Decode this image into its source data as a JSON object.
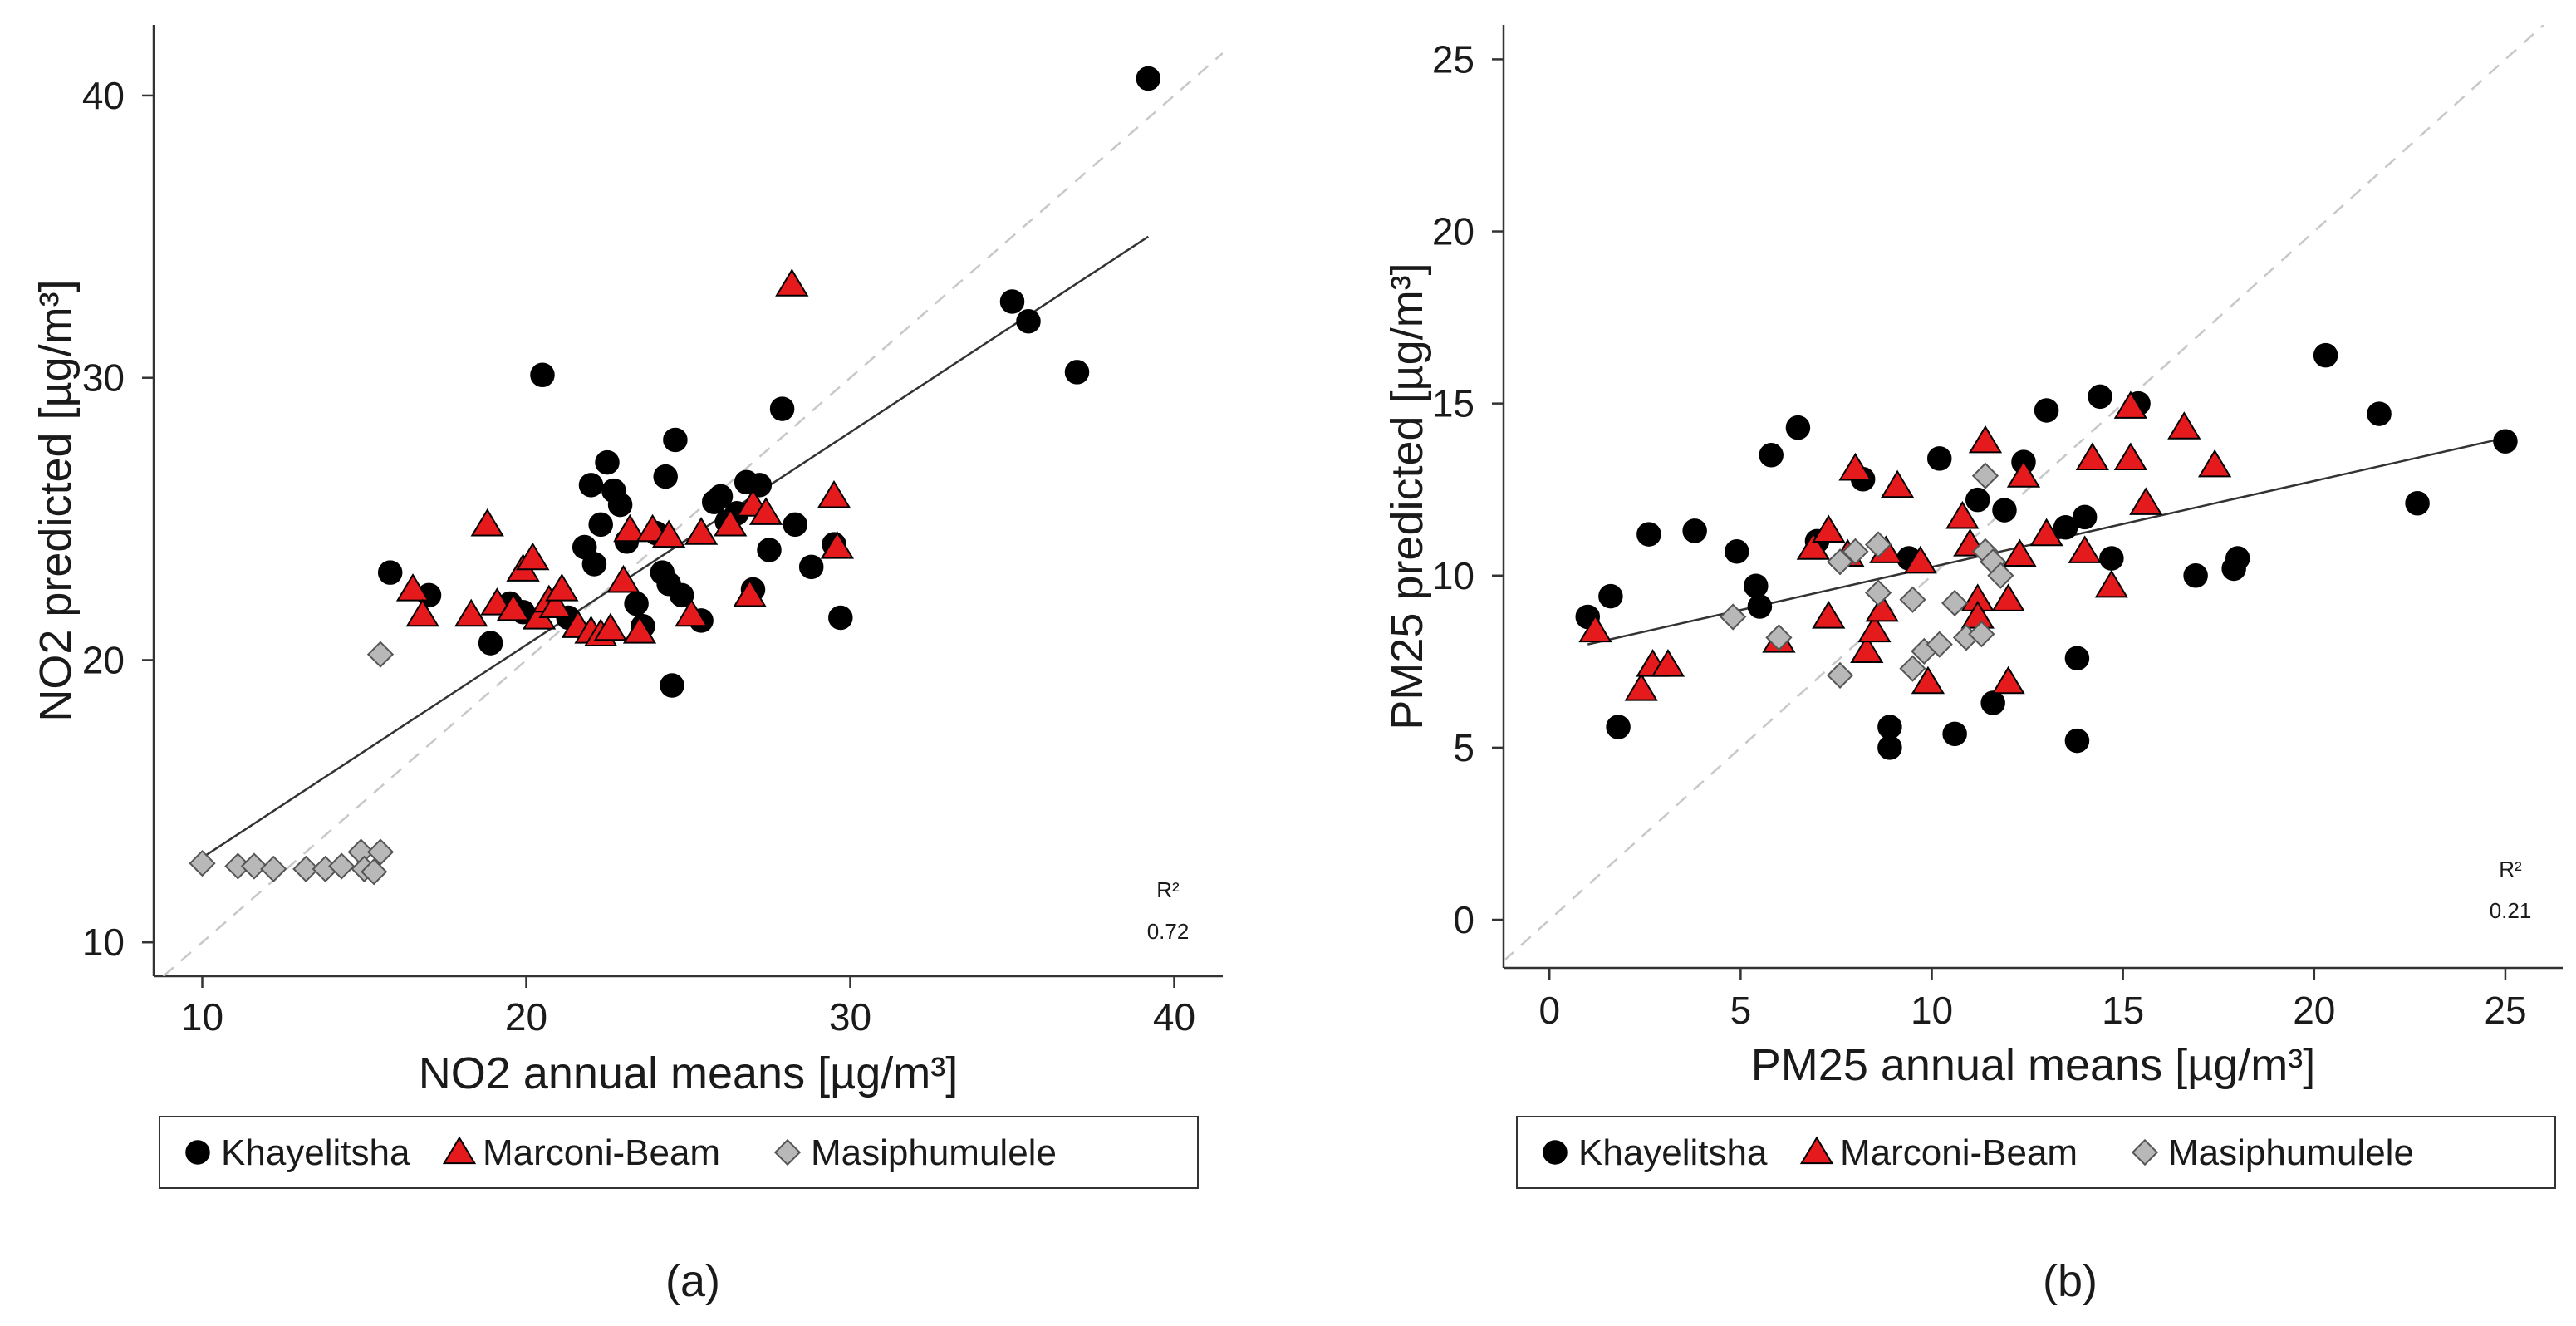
{
  "chart_data": [
    {
      "type": "scatter",
      "panel_caption": "(a)",
      "xlabel": "NO2 annual means [µg/m³]",
      "ylabel": "NO2 predicted [µg/m³]",
      "xlim": [
        8.5,
        41.5
      ],
      "ylim": [
        8.8,
        42.5
      ],
      "xticks": [
        10,
        20,
        30,
        40
      ],
      "yticks": [
        10,
        20,
        30,
        40
      ],
      "grid": false,
      "legend_position": "bottom",
      "annotation": {
        "label": "R²",
        "value": "0.72"
      },
      "identity_line": true,
      "fit_line": {
        "x": [
          10,
          39.2
        ],
        "y": [
          13.0,
          35.0
        ]
      },
      "series": [
        {
          "name": "Khayelitsha",
          "marker": "circle",
          "color": "#000000",
          "points": [
            [
              15.8,
              23.1
            ],
            [
              17.0,
              22.3
            ],
            [
              18.9,
              20.6
            ],
            [
              19.5,
              22.0
            ],
            [
              19.9,
              21.7
            ],
            [
              20.5,
              30.1
            ],
            [
              21.3,
              21.5
            ],
            [
              21.8,
              24.0
            ],
            [
              22.0,
              26.2
            ],
            [
              22.1,
              23.4
            ],
            [
              22.3,
              24.8
            ],
            [
              22.5,
              27.0
            ],
            [
              22.7,
              26.0
            ],
            [
              22.9,
              25.5
            ],
            [
              23.1,
              24.2
            ],
            [
              23.4,
              22.0
            ],
            [
              23.6,
              21.2
            ],
            [
              24.0,
              24.5
            ],
            [
              24.2,
              23.1
            ],
            [
              24.3,
              26.5
            ],
            [
              24.4,
              22.7
            ],
            [
              24.6,
              27.8
            ],
            [
              24.5,
              19.1
            ],
            [
              24.8,
              22.3
            ],
            [
              25.4,
              21.4
            ],
            [
              25.8,
              25.6
            ],
            [
              26.0,
              25.8
            ],
            [
              26.2,
              24.9
            ],
            [
              26.5,
              25.2
            ],
            [
              26.8,
              26.3
            ],
            [
              27.0,
              22.5
            ],
            [
              27.2,
              26.2
            ],
            [
              27.5,
              23.9
            ],
            [
              27.9,
              28.9
            ],
            [
              28.3,
              24.8
            ],
            [
              28.8,
              23.3
            ],
            [
              29.5,
              24.1
            ],
            [
              29.7,
              21.5
            ],
            [
              35.0,
              32.7
            ],
            [
              35.5,
              32.0
            ],
            [
              37.0,
              30.2
            ],
            [
              39.2,
              40.6
            ]
          ]
        },
        {
          "name": "Marconi-Beam",
          "marker": "triangle",
          "color": "#e41a1c",
          "points": [
            [
              16.5,
              22.5
            ],
            [
              16.8,
              21.6
            ],
            [
              18.3,
              21.6
            ],
            [
              18.8,
              24.8
            ],
            [
              19.1,
              22.0
            ],
            [
              19.6,
              21.8
            ],
            [
              19.9,
              23.2
            ],
            [
              20.2,
              23.6
            ],
            [
              20.4,
              21.5
            ],
            [
              20.7,
              22.1
            ],
            [
              20.9,
              21.9
            ],
            [
              21.1,
              22.5
            ],
            [
              21.6,
              21.2
            ],
            [
              22.0,
              21.0
            ],
            [
              22.3,
              20.9
            ],
            [
              22.6,
              21.1
            ],
            [
              23.0,
              22.8
            ],
            [
              23.2,
              24.6
            ],
            [
              23.5,
              21.0
            ],
            [
              23.9,
              24.6
            ],
            [
              24.4,
              24.4
            ],
            [
              25.1,
              21.6
            ],
            [
              25.4,
              24.5
            ],
            [
              26.3,
              24.8
            ],
            [
              26.9,
              22.3
            ],
            [
              27.0,
              25.5
            ],
            [
              27.4,
              25.2
            ],
            [
              28.2,
              33.3
            ],
            [
              29.5,
              25.8
            ],
            [
              29.6,
              24.0
            ]
          ]
        },
        {
          "name": "Masiphumulele",
          "marker": "diamond",
          "color": "#b8b8b8",
          "points": [
            [
              10.0,
              12.8
            ],
            [
              11.1,
              12.7
            ],
            [
              11.6,
              12.7
            ],
            [
              12.2,
              12.6
            ],
            [
              13.2,
              12.6
            ],
            [
              13.8,
              12.6
            ],
            [
              14.3,
              12.7
            ],
            [
              14.9,
              13.2
            ],
            [
              15.0,
              12.6
            ],
            [
              15.3,
              12.5
            ],
            [
              15.5,
              13.2
            ],
            [
              15.5,
              20.2
            ]
          ]
        }
      ]
    },
    {
      "type": "scatter",
      "panel_caption": "(b)",
      "xlabel": "PM25 annual means [µg/m³]",
      "ylabel": "PM25 predicted [µg/m³]",
      "xlim": [
        -1.2,
        26.5
      ],
      "ylim": [
        -1.4,
        26.0
      ],
      "xticks": [
        0,
        5,
        10,
        15,
        20,
        25
      ],
      "yticks": [
        0,
        5,
        10,
        15,
        20,
        25
      ],
      "grid": false,
      "legend_position": "bottom",
      "annotation": {
        "label": "R²",
        "value": "0.21"
      },
      "identity_line": true,
      "fit_line": {
        "x": [
          1.0,
          25.0
        ],
        "y": [
          8.0,
          14.0
        ]
      },
      "series": [
        {
          "name": "Khayelitsha",
          "marker": "circle",
          "color": "#000000",
          "points": [
            [
              1.0,
              8.8
            ],
            [
              1.6,
              9.4
            ],
            [
              1.8,
              5.6
            ],
            [
              2.6,
              11.2
            ],
            [
              3.8,
              11.3
            ],
            [
              4.9,
              10.7
            ],
            [
              5.4,
              9.7
            ],
            [
              5.5,
              9.1
            ],
            [
              5.8,
              13.5
            ],
            [
              6.5,
              14.3
            ],
            [
              7.0,
              11.0
            ],
            [
              8.2,
              12.8
            ],
            [
              8.9,
              5.0
            ],
            [
              8.9,
              5.6
            ],
            [
              9.4,
              10.5
            ],
            [
              10.2,
              13.4
            ],
            [
              10.6,
              5.4
            ],
            [
              11.2,
              12.2
            ],
            [
              11.6,
              6.3
            ],
            [
              11.9,
              11.9
            ],
            [
              12.4,
              13.3
            ],
            [
              13.0,
              14.8
            ],
            [
              13.5,
              11.4
            ],
            [
              13.8,
              5.2
            ],
            [
              13.8,
              7.6
            ],
            [
              14.0,
              11.7
            ],
            [
              14.4,
              15.2
            ],
            [
              14.7,
              10.5
            ],
            [
              15.4,
              15.0
            ],
            [
              16.9,
              10.0
            ],
            [
              17.9,
              10.2
            ],
            [
              18.0,
              10.5
            ],
            [
              20.3,
              16.4
            ],
            [
              21.7,
              14.7
            ],
            [
              22.7,
              12.1
            ],
            [
              25.0,
              13.9
            ]
          ]
        },
        {
          "name": "Marconi-Beam",
          "marker": "triangle",
          "color": "#e41a1c",
          "points": [
            [
              1.2,
              8.4
            ],
            [
              2.4,
              6.7
            ],
            [
              2.7,
              7.4
            ],
            [
              3.1,
              7.4
            ],
            [
              6.0,
              8.1
            ],
            [
              6.9,
              10.8
            ],
            [
              7.3,
              11.3
            ],
            [
              7.3,
              8.8
            ],
            [
              7.8,
              10.6
            ],
            [
              8.0,
              13.1
            ],
            [
              8.3,
              7.8
            ],
            [
              8.5,
              8.4
            ],
            [
              8.7,
              9.0
            ],
            [
              8.8,
              10.7
            ],
            [
              9.1,
              12.6
            ],
            [
              9.7,
              10.4
            ],
            [
              9.9,
              6.9
            ],
            [
              10.8,
              11.7
            ],
            [
              11.0,
              10.9
            ],
            [
              11.2,
              9.3
            ],
            [
              11.2,
              8.8
            ],
            [
              11.4,
              13.9
            ],
            [
              12.0,
              9.3
            ],
            [
              12.0,
              6.9
            ],
            [
              12.3,
              10.6
            ],
            [
              12.4,
              12.9
            ],
            [
              13.0,
              11.2
            ],
            [
              14.0,
              10.7
            ],
            [
              14.2,
              13.4
            ],
            [
              14.7,
              9.7
            ],
            [
              15.2,
              13.4
            ],
            [
              15.2,
              14.9
            ],
            [
              15.6,
              12.1
            ],
            [
              16.6,
              14.3
            ],
            [
              17.4,
              13.2
            ]
          ]
        },
        {
          "name": "Masiphumulele",
          "marker": "diamond",
          "color": "#b8b8b8",
          "points": [
            [
              4.8,
              8.8
            ],
            [
              6.0,
              8.2
            ],
            [
              7.6,
              7.1
            ],
            [
              7.6,
              10.4
            ],
            [
              8.0,
              10.7
            ],
            [
              8.6,
              10.9
            ],
            [
              8.6,
              9.5
            ],
            [
              9.5,
              9.3
            ],
            [
              9.5,
              7.3
            ],
            [
              9.8,
              7.8
            ],
            [
              10.2,
              8.0
            ],
            [
              10.6,
              9.2
            ],
            [
              10.9,
              8.2
            ],
            [
              11.3,
              8.3
            ],
            [
              11.4,
              10.7
            ],
            [
              11.6,
              10.4
            ],
            [
              11.8,
              10.0
            ],
            [
              11.4,
              12.9
            ]
          ]
        }
      ]
    }
  ]
}
